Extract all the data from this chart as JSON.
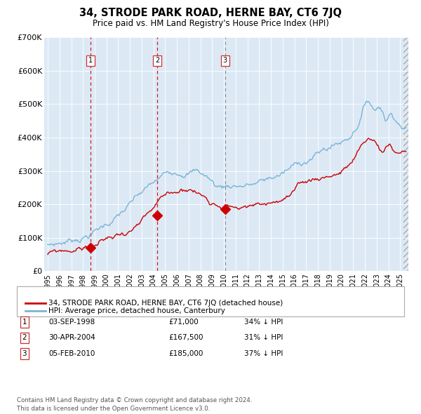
{
  "title": "34, STRODE PARK ROAD, HERNE BAY, CT6 7JQ",
  "subtitle": "Price paid vs. HM Land Registry's House Price Index (HPI)",
  "bg_color": "#dce9f5",
  "hpi_color": "#7ab4d8",
  "price_color": "#cc0000",
  "vline_colors": [
    "#cc0000",
    "#cc0000",
    "#888888"
  ],
  "sales": [
    {
      "date_num": 1998.67,
      "price": 71000,
      "label": "1"
    },
    {
      "date_num": 2004.33,
      "price": 167500,
      "label": "2"
    },
    {
      "date_num": 2010.09,
      "price": 185000,
      "label": "3"
    }
  ],
  "sale_table": [
    {
      "num": "1",
      "date": "03-SEP-1998",
      "price": "£71,000",
      "pct": "34% ↓ HPI"
    },
    {
      "num": "2",
      "date": "30-APR-2004",
      "price": "£167,500",
      "pct": "31% ↓ HPI"
    },
    {
      "num": "3",
      "date": "05-FEB-2010",
      "price": "£185,000",
      "pct": "37% ↓ HPI"
    }
  ],
  "legend_entries": [
    "34, STRODE PARK ROAD, HERNE BAY, CT6 7JQ (detached house)",
    "HPI: Average price, detached house, Canterbury"
  ],
  "footer": "Contains HM Land Registry data © Crown copyright and database right 2024.\nThis data is licensed under the Open Government Licence v3.0.",
  "ylim": [
    0,
    700000
  ],
  "yticks": [
    0,
    100000,
    200000,
    300000,
    400000,
    500000,
    600000,
    700000
  ],
  "ytick_labels": [
    "£0",
    "£100K",
    "£200K",
    "£300K",
    "£400K",
    "£500K",
    "£600K",
    "£700K"
  ],
  "xlim_start": 1994.7,
  "xlim_end": 2025.7
}
